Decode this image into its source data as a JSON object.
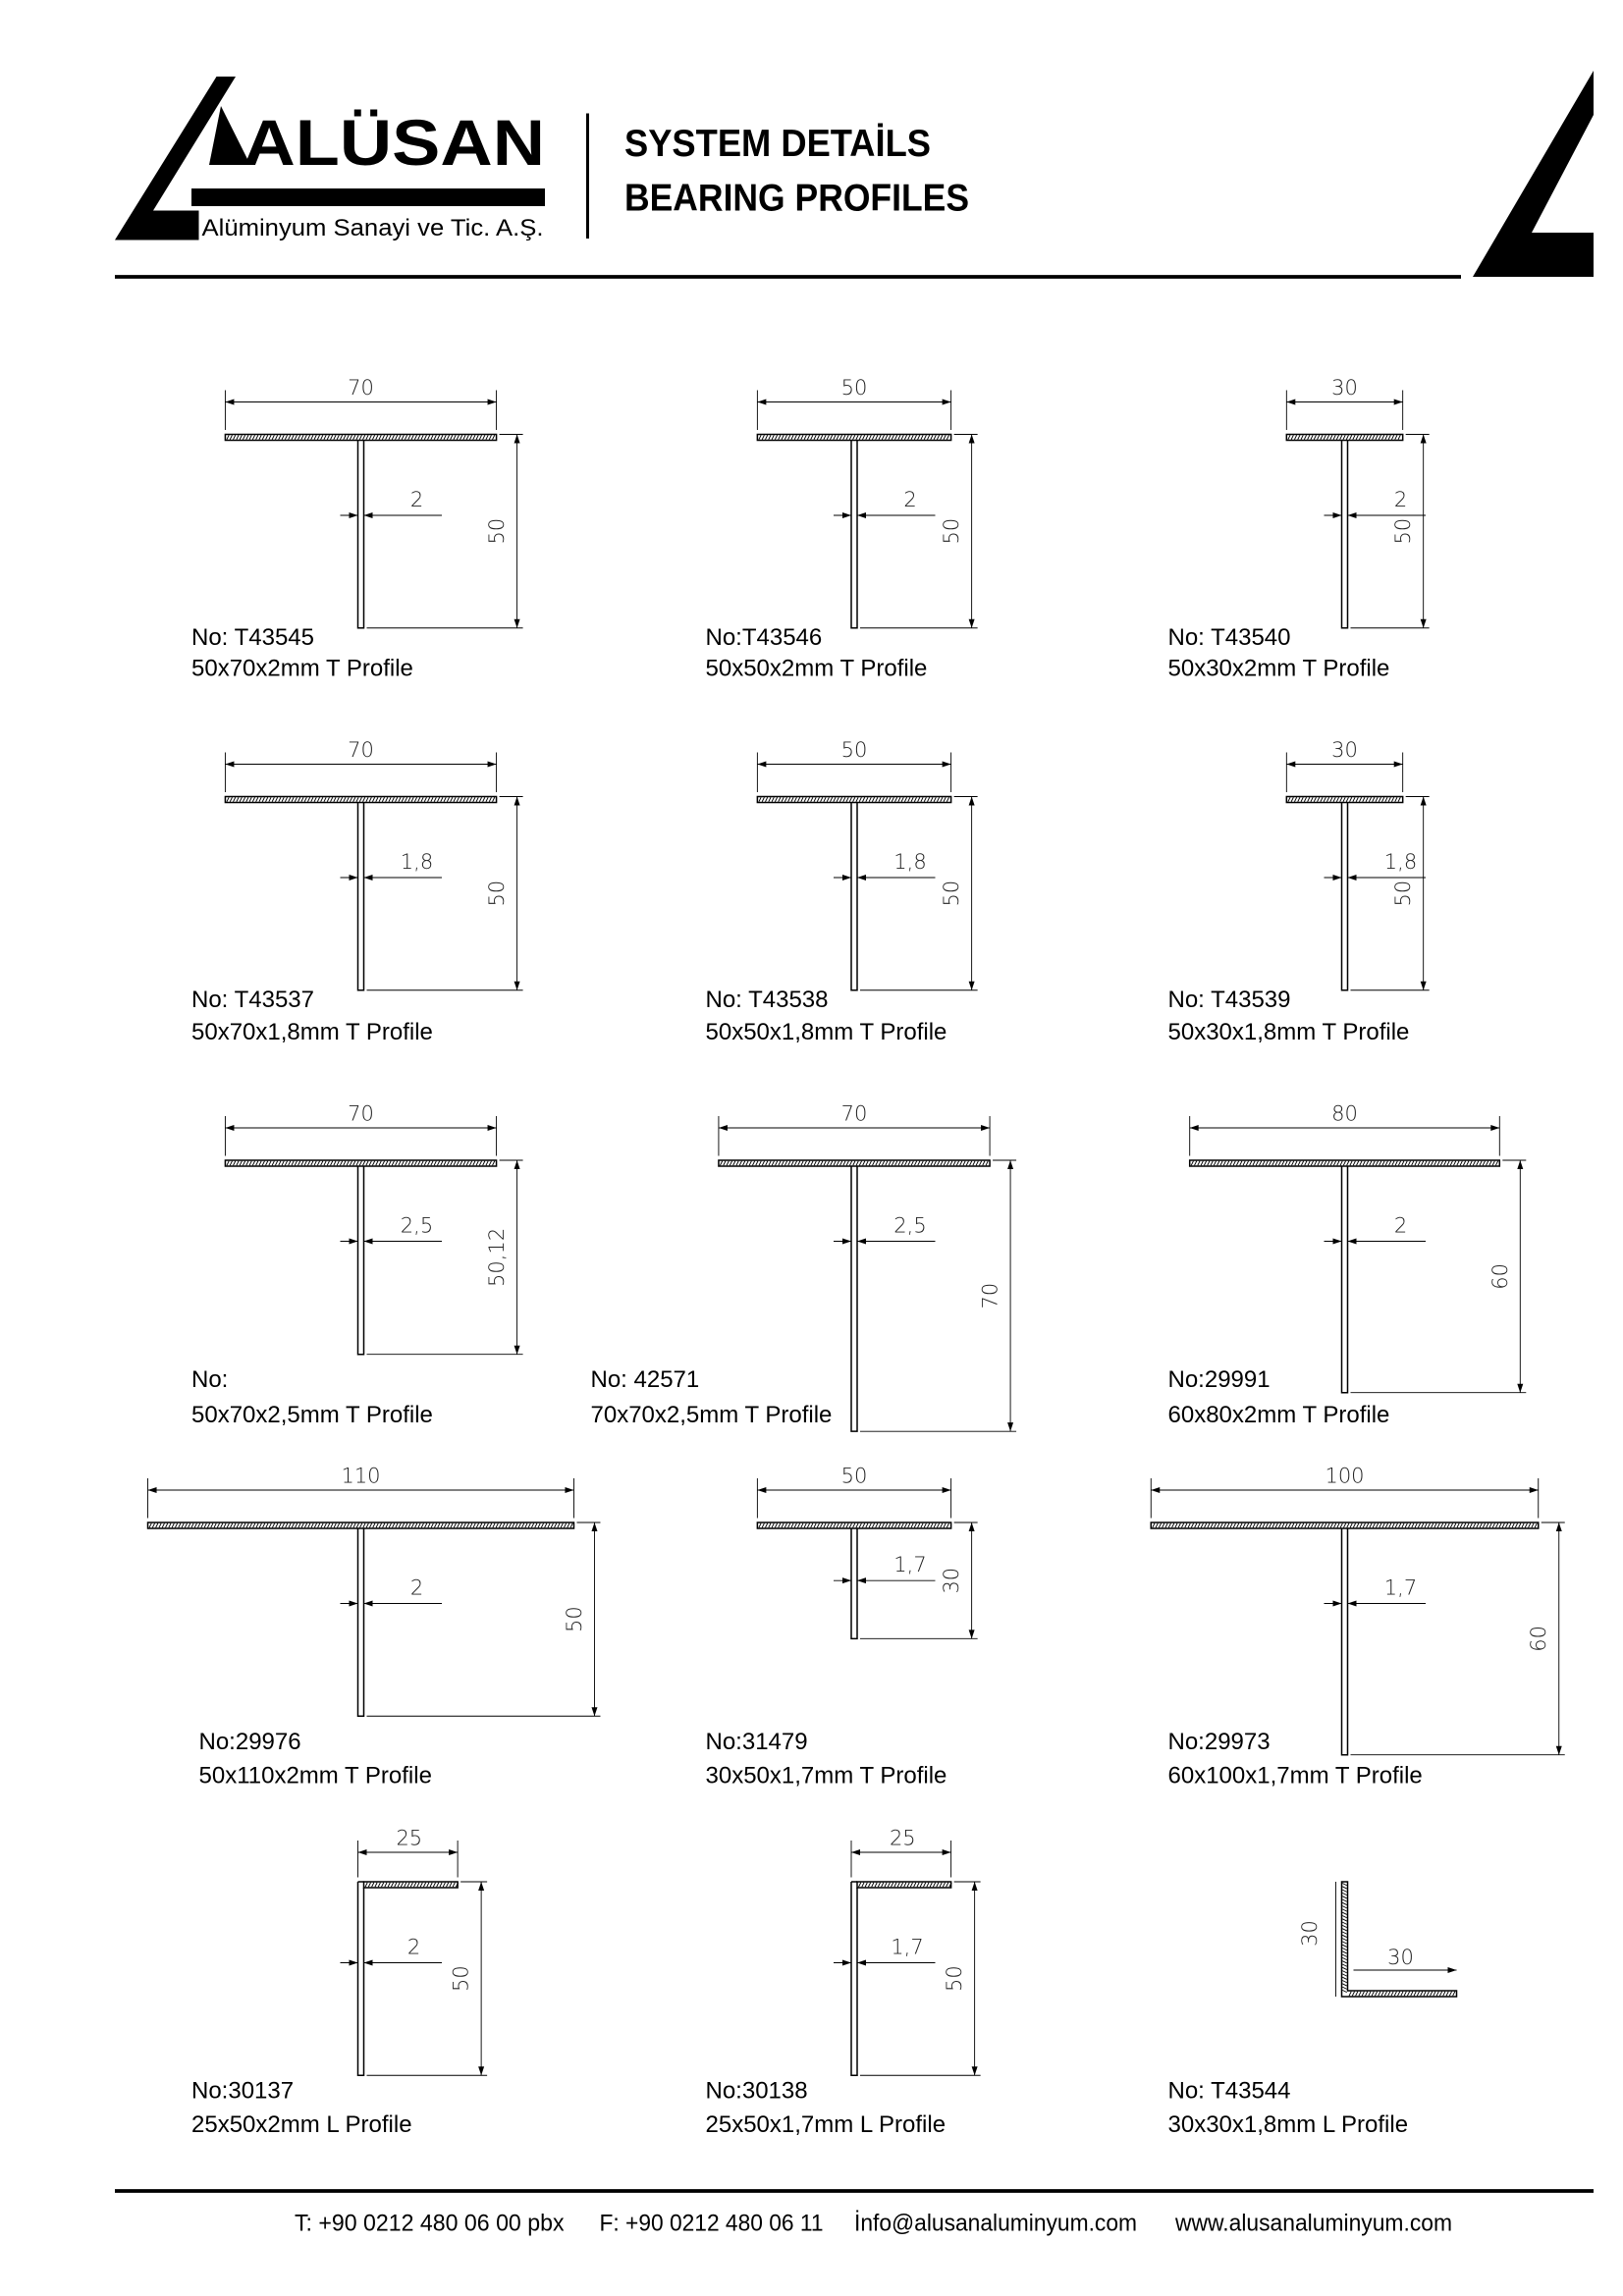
{
  "header": {
    "brand": "ALÜSAN",
    "brand_subtitle": "Alüminyum Sanayi ve Tic. A.Ş.",
    "title_line1": "SYSTEM DETAİLS",
    "title_line2": "BEARING PROFILES"
  },
  "profiles": [
    {
      "no": "No: T43545",
      "desc": "50x70x2mm T Profile",
      "type": "T",
      "width": 70,
      "height": 50,
      "width_label": "70",
      "height_label": "50",
      "thickness_label": "2"
    },
    {
      "no": "No:T43546",
      "desc": "50x50x2mm T Profile",
      "type": "T",
      "width": 50,
      "height": 50,
      "width_label": "50",
      "height_label": "50",
      "thickness_label": "2"
    },
    {
      "no": "No: T43540",
      "desc": "50x30x2mm T Profile",
      "type": "T",
      "width": 30,
      "height": 50,
      "width_label": "30",
      "height_label": "50",
      "thickness_label": "2"
    },
    {
      "no": "No: T43537",
      "desc": "50x70x1,8mm T Profile",
      "type": "T",
      "width": 70,
      "height": 50,
      "width_label": "70",
      "height_label": "50",
      "thickness_label": "1,8"
    },
    {
      "no": "No: T43538",
      "desc": "50x50x1,8mm T Profile",
      "type": "T",
      "width": 50,
      "height": 50,
      "width_label": "50",
      "height_label": "50",
      "thickness_label": "1,8"
    },
    {
      "no": "No: T43539",
      "desc": "50x30x1,8mm T Profile",
      "type": "T",
      "width": 30,
      "height": 50,
      "width_label": "30",
      "height_label": "50",
      "thickness_label": "1,8"
    },
    {
      "no": "No:",
      "desc": "50x70x2,5mm T Profile",
      "type": "T",
      "width": 70,
      "height": 50.12,
      "width_label": "70",
      "height_label": "50,12",
      "thickness_label": "2,5"
    },
    {
      "no": "No: 42571",
      "desc": "70x70x2,5mm T Profile",
      "type": "T",
      "width": 70,
      "height": 70,
      "width_label": "70",
      "height_label": "70",
      "thickness_label": "2,5"
    },
    {
      "no": "No:29991",
      "desc": "60x80x2mm T Profile",
      "type": "T",
      "width": 80,
      "height": 60,
      "width_label": "80",
      "height_label": "60",
      "thickness_label": "2"
    },
    {
      "no": "No:29976",
      "desc": "50x110x2mm T Profile",
      "type": "T",
      "width": 110,
      "height": 50,
      "width_label": "110",
      "height_label": "50",
      "thickness_label": "2"
    },
    {
      "no": "No:31479",
      "desc": "30x50x1,7mm T Profile",
      "type": "T",
      "width": 50,
      "height": 30,
      "width_label": "50",
      "height_label": "30",
      "thickness_label": "1,7"
    },
    {
      "no": "No:29973",
      "desc": "60x100x1,7mm T Profile",
      "type": "T",
      "width": 100,
      "height": 60,
      "width_label": "100",
      "height_label": "60",
      "thickness_label": "1,7"
    },
    {
      "no": "No:30137",
      "desc": "25x50x2mm L Profile",
      "type": "L",
      "width": 25,
      "height": 50,
      "width_label": "25",
      "height_label": "50",
      "thickness_label": "2"
    },
    {
      "no": "No:30138",
      "desc": "25x50x1,7mm L Profile",
      "type": "L",
      "width": 25,
      "height": 50,
      "width_label": "25",
      "height_label": "50",
      "thickness_label": "1,7"
    },
    {
      "no": "No: T43544",
      "desc": "30x30x1,8mm L Profile",
      "type": "angle",
      "width": 30,
      "height": 30,
      "width_label": "30",
      "height_label": "30",
      "thickness_label": ""
    }
  ],
  "footer": {
    "phone": "T: +90 0212 480 06 00 pbx",
    "fax": "F: +90 0212 480 06 11",
    "email": "İnfo@alusanaluminyum.com",
    "website": "www.alusanaluminyum.com"
  }
}
